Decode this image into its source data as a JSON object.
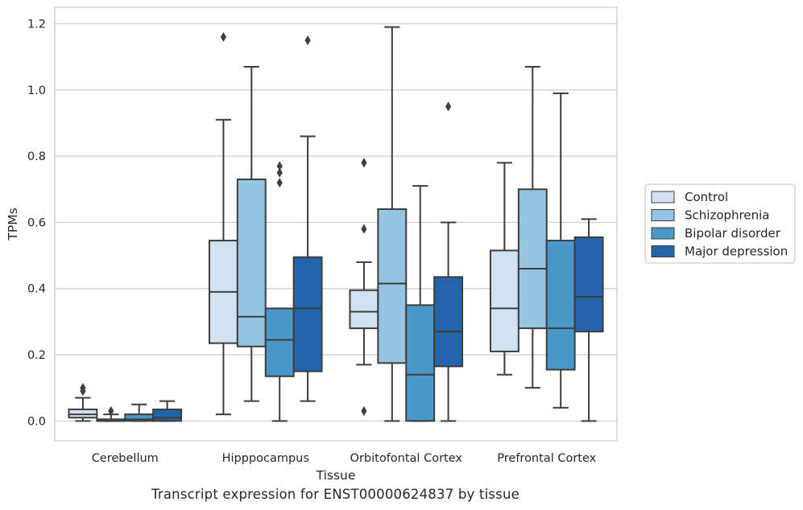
{
  "chart_data": {
    "type": "box",
    "title": "",
    "xlabel": "Tissue",
    "ylabel": "TPMs",
    "caption": "Transcript expression for ENST00000624837 by tissue",
    "ylim": [
      -0.06,
      1.25
    ],
    "yticks": [
      0.0,
      0.2,
      0.4,
      0.6,
      0.8,
      1.0,
      1.2
    ],
    "ytick_labels": [
      "0.0",
      "0.2",
      "0.4",
      "0.6",
      "0.8",
      "1.0",
      "1.2"
    ],
    "grid": "horizontal",
    "legend_position": "right",
    "categories": [
      "Cerebellum",
      "Hipppocampus",
      "Orbitofontal Cortex",
      "Prefrontal Cortex"
    ],
    "series": [
      {
        "name": "Control",
        "color": "#d0e1f2",
        "boxes": [
          {
            "whislo": 0.0,
            "q1": 0.01,
            "med": 0.02,
            "q3": 0.035,
            "whishi": 0.07,
            "fliers": [
              0.09,
              0.1
            ]
          },
          {
            "whislo": 0.02,
            "q1": 0.235,
            "med": 0.39,
            "q3": 0.545,
            "whishi": 0.91,
            "fliers": [
              1.16
            ]
          },
          {
            "whislo": 0.17,
            "q1": 0.28,
            "med": 0.33,
            "q3": 0.395,
            "whishi": 0.48,
            "fliers": [
              0.03,
              0.58,
              0.78
            ]
          },
          {
            "whislo": 0.14,
            "q1": 0.21,
            "med": 0.34,
            "q3": 0.515,
            "whishi": 0.78,
            "fliers": []
          }
        ]
      },
      {
        "name": "Schizophrenia",
        "color": "#94c4df",
        "boxes": [
          {
            "whislo": 0.0,
            "q1": 0.0,
            "med": 0.0,
            "q3": 0.005,
            "whishi": 0.02,
            "fliers": [
              0.03
            ]
          },
          {
            "whislo": 0.06,
            "q1": 0.225,
            "med": 0.315,
            "q3": 0.73,
            "whishi": 1.07,
            "fliers": []
          },
          {
            "whislo": 0.0,
            "q1": 0.175,
            "med": 0.415,
            "q3": 0.64,
            "whishi": 1.19,
            "fliers": []
          },
          {
            "whislo": 0.1,
            "q1": 0.28,
            "med": 0.46,
            "q3": 0.7,
            "whishi": 1.07,
            "fliers": []
          }
        ]
      },
      {
        "name": "Bipolar disorder",
        "color": "#4a98c9",
        "boxes": [
          {
            "whislo": 0.0,
            "q1": 0.0,
            "med": 0.005,
            "q3": 0.02,
            "whishi": 0.05,
            "fliers": []
          },
          {
            "whislo": 0.0,
            "q1": 0.135,
            "med": 0.245,
            "q3": 0.34,
            "whishi": 0.34,
            "fliers": [
              0.72,
              0.75,
              0.77
            ]
          },
          {
            "whislo": 0.0,
            "q1": 0.0,
            "med": 0.14,
            "q3": 0.35,
            "whishi": 0.71,
            "fliers": []
          },
          {
            "whislo": 0.04,
            "q1": 0.155,
            "med": 0.28,
            "q3": 0.545,
            "whishi": 0.99,
            "fliers": []
          }
        ]
      },
      {
        "name": "Major depression",
        "color": "#2464ab",
        "boxes": [
          {
            "whislo": 0.0,
            "q1": 0.0,
            "med": 0.01,
            "q3": 0.035,
            "whishi": 0.06,
            "fliers": []
          },
          {
            "whislo": 0.06,
            "q1": 0.15,
            "med": 0.34,
            "q3": 0.495,
            "whishi": 0.86,
            "fliers": [
              1.15
            ]
          },
          {
            "whislo": 0.0,
            "q1": 0.165,
            "med": 0.27,
            "q3": 0.435,
            "whishi": 0.6,
            "fliers": [
              0.95
            ]
          },
          {
            "whislo": 0.0,
            "q1": 0.27,
            "med": 0.375,
            "q3": 0.555,
            "whishi": 0.61,
            "fliers": []
          }
        ]
      }
    ]
  }
}
